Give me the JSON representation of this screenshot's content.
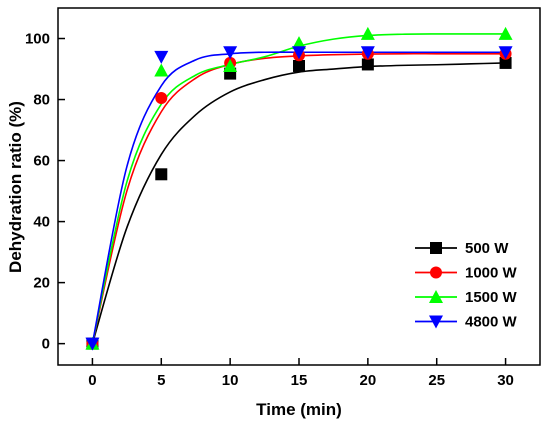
{
  "chart_data": {
    "type": "scatter",
    "xlabel": "Time (min)",
    "ylabel": "Dehydration ratio (%)",
    "xlim": [
      -2.5,
      32.5
    ],
    "ylim": [
      -7,
      110
    ],
    "xticks": [
      0,
      5,
      10,
      15,
      20,
      25,
      30
    ],
    "yticks": [
      0,
      20,
      40,
      60,
      80,
      100
    ],
    "grid": false,
    "legend_position": "bottom-right",
    "series": [
      {
        "name": "500 W",
        "color": "#000000",
        "marker": "square",
        "x": [
          0,
          5,
          10,
          15,
          20,
          30
        ],
        "y": [
          0,
          55.5,
          88.5,
          91,
          91.5,
          92
        ],
        "fit": [
          0,
          38,
          62,
          75,
          82.5,
          86.5,
          89,
          90,
          90.8,
          91.2,
          91.4,
          91.7,
          92
        ]
      },
      {
        "name": "1000 W",
        "color": "#ff0000",
        "marker": "circle",
        "x": [
          0,
          5,
          10,
          15,
          20,
          30
        ],
        "y": [
          0,
          80.5,
          92,
          94.5,
          95,
          95
        ],
        "fit": [
          0,
          50,
          76,
          87,
          91.5,
          93.5,
          94.3,
          94.7,
          94.9,
          95,
          95,
          95,
          95
        ]
      },
      {
        "name": "1500 W",
        "color": "#00ff00",
        "marker": "triangle-up",
        "x": [
          0,
          5,
          10,
          15,
          20,
          30
        ],
        "y": [
          0,
          89.5,
          91,
          98.5,
          101.5,
          101.5
        ],
        "fit": [
          0,
          53,
          78.5,
          88,
          91.5,
          94,
          97.5,
          99.8,
          101,
          101.4,
          101.5,
          101.5,
          101.5
        ]
      },
      {
        "name": "4800 W",
        "color": "#0000ff",
        "marker": "triangle-down",
        "x": [
          0,
          5,
          10,
          15,
          20,
          30
        ],
        "y": [
          0,
          94,
          95.5,
          95.5,
          95.5,
          95.5
        ],
        "fit": [
          0,
          58,
          84.5,
          93,
          95,
          95.5,
          95.5,
          95.5,
          95.5,
          95.5,
          95.5,
          95.5,
          95.5
        ]
      }
    ],
    "fit_x": [
      0,
      2.5,
      5,
      7.5,
      10,
      12.5,
      15,
      17.5,
      20,
      22.5,
      25,
      27.5,
      30
    ]
  }
}
